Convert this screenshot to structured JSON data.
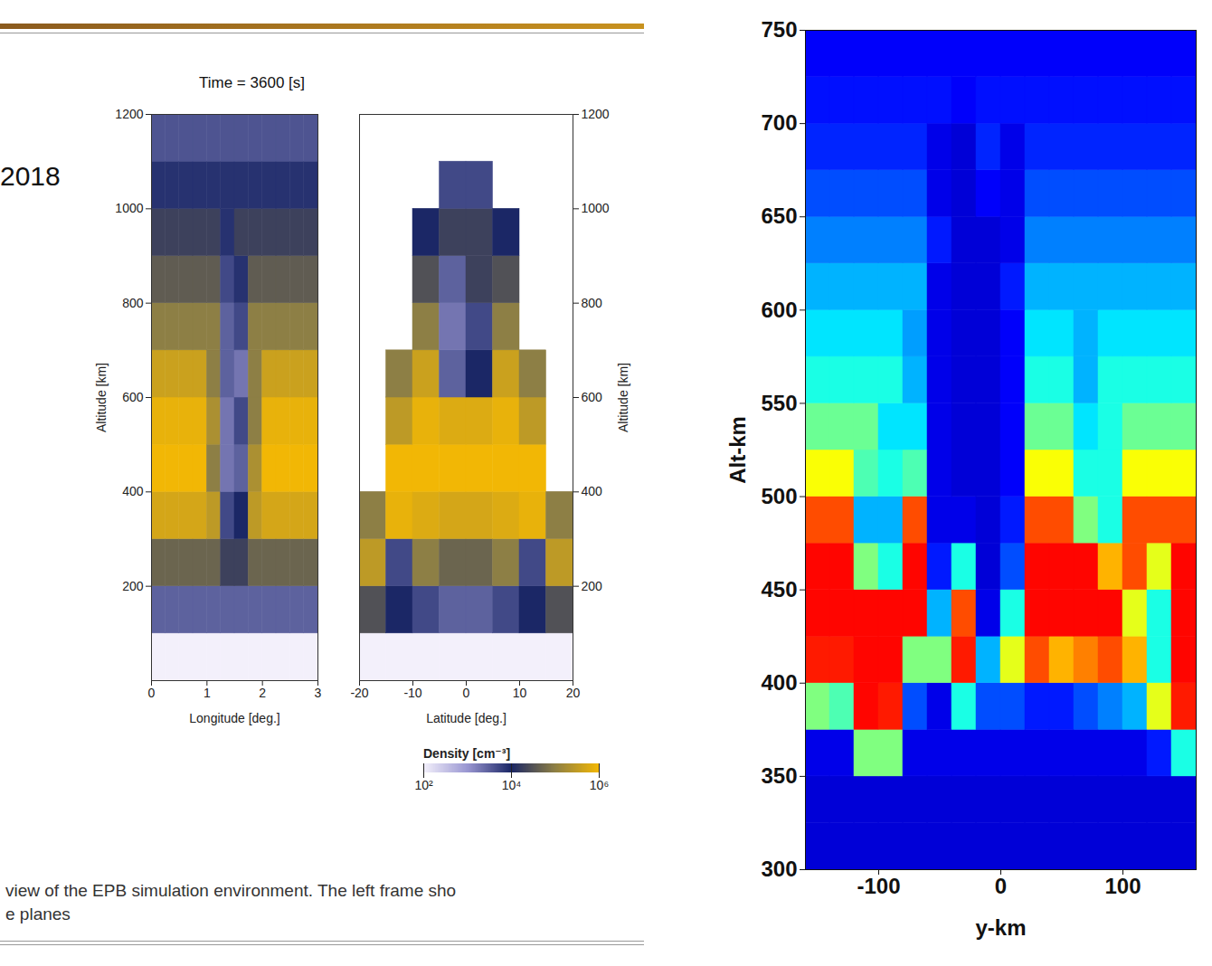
{
  "slide": {
    "text": "2018",
    "caption": [
      "view of the EPB simulation environment. The left frame sho",
      "e planes"
    ]
  },
  "chart_data": [
    {
      "type": "heatmap",
      "title": "Time = 3600 [s]",
      "x_label": "Longitude [deg.]",
      "y_label": "Altitude [km]",
      "xlim": [
        0,
        3
      ],
      "ylim": [
        0,
        1200
      ],
      "xticks": [
        0,
        1,
        2,
        3
      ],
      "yticks": [
        200,
        400,
        600,
        800,
        1000,
        1200
      ],
      "x_edges": [
        0,
        0.25,
        0.5,
        0.75,
        1,
        1.25,
        1.5,
        1.75,
        2,
        2.25,
        2.5,
        2.75,
        3
      ],
      "y_edges": [
        0,
        100,
        200,
        300,
        400,
        500,
        600,
        700,
        800,
        900,
        1000,
        1100,
        1200
      ],
      "values": [
        [
          100,
          100,
          100,
          100,
          100,
          100,
          100,
          100,
          100,
          100,
          100,
          100
        ],
        [
          3000,
          3000,
          3000,
          3000,
          3000,
          3000,
          3000,
          3000,
          3000,
          3000,
          3000,
          3000
        ],
        [
          50000,
          50000,
          50000,
          50000,
          50000,
          20000,
          20000,
          50000,
          50000,
          50000,
          50000,
          50000
        ],
        [
          500000,
          500000,
          500000,
          500000,
          300000,
          5000,
          10000,
          300000,
          500000,
          500000,
          500000,
          500000
        ],
        [
          1000000,
          1000000,
          1000000,
          1000000,
          100000,
          2000,
          3000,
          200000,
          1000000,
          1000000,
          1000000,
          1000000
        ],
        [
          800000,
          800000,
          800000,
          800000,
          200000,
          2000,
          5000,
          100000,
          800000,
          800000,
          800000,
          800000
        ],
        [
          400000,
          400000,
          400000,
          400000,
          100000,
          3000,
          2000,
          100000,
          400000,
          400000,
          400000,
          400000
        ],
        [
          100000,
          100000,
          100000,
          100000,
          100000,
          3000,
          5000,
          100000,
          100000,
          100000,
          100000,
          100000
        ],
        [
          40000,
          40000,
          40000,
          40000,
          40000,
          5000,
          8000,
          40000,
          40000,
          40000,
          40000,
          40000
        ],
        [
          20000,
          20000,
          20000,
          20000,
          20000,
          8000,
          20000,
          20000,
          20000,
          20000,
          20000,
          20000
        ],
        [
          8000,
          8000,
          8000,
          8000,
          8000,
          8000,
          8000,
          8000,
          8000,
          8000,
          8000,
          8000
        ],
        [
          4000,
          4000,
          4000,
          4000,
          4000,
          4000,
          4000,
          4000,
          4000,
          4000,
          4000,
          4000
        ]
      ]
    },
    {
      "type": "heatmap",
      "x_label": "Latitude [deg.]",
      "y_label": "Altitude [km]",
      "xlim": [
        -20,
        20
      ],
      "ylim": [
        0,
        1200
      ],
      "xticks": [
        -20,
        -10,
        0,
        10,
        20
      ],
      "yticks": [
        200,
        400,
        600,
        800,
        1000,
        1200
      ],
      "x_edges": [
        -20,
        -15,
        -10,
        -5,
        0,
        5,
        10,
        15,
        20
      ],
      "y_edges": [
        0,
        100,
        200,
        300,
        400,
        500,
        600,
        700,
        800,
        900,
        1000,
        1100,
        1200
      ],
      "values": [
        [
          100,
          100,
          100,
          100,
          100,
          100,
          100,
          100
        ],
        [
          30000,
          10000,
          5000,
          3000,
          3000,
          5000,
          10000,
          30000
        ],
        [
          300000,
          5000,
          100000,
          50000,
          50000,
          100000,
          5000,
          300000
        ],
        [
          100000,
          800000,
          600000,
          500000,
          500000,
          600000,
          800000,
          100000
        ],
        [
          null,
          1000000,
          1000000,
          1000000,
          1000000,
          1000000,
          1000000,
          null
        ],
        [
          null,
          300000,
          800000,
          600000,
          600000,
          800000,
          300000,
          null
        ],
        [
          null,
          100000,
          400000,
          3000,
          10000,
          400000,
          100000,
          null
        ],
        [
          null,
          null,
          100000,
          2000,
          5000,
          100000,
          null,
          null
        ],
        [
          null,
          null,
          30000,
          3000,
          20000,
          30000,
          null,
          null
        ],
        [
          null,
          null,
          10000,
          20000,
          20000,
          10000,
          null,
          null
        ],
        [
          null,
          null,
          null,
          5000,
          5000,
          null,
          null,
          null
        ],
        [
          null,
          null,
          null,
          null,
          null,
          null,
          null,
          null
        ]
      ],
      "colorbar": {
        "label": "Density [cm⁻³]",
        "log": true,
        "range": [
          100,
          1000000
        ],
        "ticks": [
          {
            "value": 100,
            "label": "10²"
          },
          {
            "value": 10000,
            "label": "10⁴"
          },
          {
            "value": 1000000,
            "label": "10⁶"
          }
        ]
      }
    },
    {
      "type": "heatmap",
      "x_label": "y-km",
      "y_label": "Alt-km",
      "xlim": [
        -160,
        160
      ],
      "ylim": [
        300,
        750
      ],
      "xticks": [
        -100,
        0,
        100
      ],
      "yticks": [
        300,
        350,
        400,
        450,
        500,
        550,
        600,
        650,
        700,
        750
      ],
      "zlim": [
        0,
        1
      ],
      "x_edges": [
        -160,
        -140,
        -120,
        -100,
        -80,
        -60,
        -40,
        -20,
        0,
        20,
        40,
        60,
        80,
        100,
        120,
        140,
        160
      ],
      "y_edges": [
        300,
        325,
        350,
        375,
        400,
        425,
        450,
        475,
        500,
        525,
        550,
        575,
        600,
        625,
        650,
        675,
        700,
        725,
        750
      ],
      "values": [
        [
          0.08,
          0.08,
          0.08,
          0.08,
          0.08,
          0.08,
          0.08,
          0.08,
          0.08,
          0.08,
          0.08,
          0.08,
          0.08,
          0.08,
          0.08,
          0.08
        ],
        [
          0.08,
          0.08,
          0.08,
          0.08,
          0.08,
          0.08,
          0.08,
          0.08,
          0.08,
          0.08,
          0.08,
          0.08,
          0.08,
          0.08,
          0.08,
          0.08
        ],
        [
          0.1,
          0.1,
          0.5,
          0.5,
          0.1,
          0.1,
          0.1,
          0.1,
          0.1,
          0.1,
          0.1,
          0.1,
          0.1,
          0.1,
          0.15,
          0.4
        ],
        [
          0.5,
          0.45,
          0.87,
          0.85,
          0.2,
          0.1,
          0.4,
          0.2,
          0.2,
          0.15,
          0.15,
          0.2,
          0.25,
          0.3,
          0.6,
          0.85
        ],
        [
          0.85,
          0.85,
          0.87,
          0.87,
          0.5,
          0.5,
          0.85,
          0.3,
          0.6,
          0.8,
          0.7,
          0.75,
          0.8,
          0.7,
          0.4,
          0.87
        ],
        [
          0.87,
          0.87,
          0.87,
          0.87,
          0.87,
          0.3,
          0.8,
          0.1,
          0.4,
          0.87,
          0.87,
          0.87,
          0.87,
          0.6,
          0.4,
          0.87
        ],
        [
          0.87,
          0.87,
          0.5,
          0.4,
          0.87,
          0.15,
          0.4,
          0.08,
          0.2,
          0.87,
          0.87,
          0.87,
          0.7,
          0.8,
          0.6,
          0.87
        ],
        [
          0.8,
          0.8,
          0.3,
          0.3,
          0.8,
          0.1,
          0.1,
          0.08,
          0.15,
          0.8,
          0.8,
          0.5,
          0.4,
          0.8,
          0.8,
          0.8
        ],
        [
          0.62,
          0.62,
          0.45,
          0.4,
          0.45,
          0.1,
          0.08,
          0.08,
          0.12,
          0.62,
          0.62,
          0.4,
          0.4,
          0.62,
          0.62,
          0.62
        ],
        [
          0.48,
          0.48,
          0.48,
          0.35,
          0.35,
          0.1,
          0.08,
          0.08,
          0.12,
          0.48,
          0.48,
          0.35,
          0.4,
          0.48,
          0.48,
          0.48
        ],
        [
          0.4,
          0.4,
          0.4,
          0.4,
          0.3,
          0.1,
          0.08,
          0.08,
          0.12,
          0.4,
          0.4,
          0.3,
          0.4,
          0.4,
          0.4,
          0.4
        ],
        [
          0.35,
          0.35,
          0.35,
          0.35,
          0.28,
          0.1,
          0.08,
          0.08,
          0.12,
          0.35,
          0.35,
          0.3,
          0.35,
          0.35,
          0.35,
          0.35
        ],
        [
          0.3,
          0.3,
          0.3,
          0.3,
          0.3,
          0.1,
          0.08,
          0.08,
          0.15,
          0.3,
          0.3,
          0.3,
          0.3,
          0.3,
          0.3,
          0.3
        ],
        [
          0.25,
          0.25,
          0.25,
          0.25,
          0.25,
          0.15,
          0.08,
          0.08,
          0.1,
          0.25,
          0.25,
          0.25,
          0.25,
          0.25,
          0.25,
          0.25
        ],
        [
          0.2,
          0.2,
          0.2,
          0.2,
          0.2,
          0.1,
          0.08,
          0.12,
          0.1,
          0.2,
          0.2,
          0.2,
          0.2,
          0.2,
          0.2,
          0.2
        ],
        [
          0.16,
          0.16,
          0.16,
          0.16,
          0.16,
          0.1,
          0.08,
          0.16,
          0.1,
          0.16,
          0.16,
          0.16,
          0.16,
          0.16,
          0.16,
          0.16
        ],
        [
          0.14,
          0.14,
          0.14,
          0.14,
          0.14,
          0.14,
          0.12,
          0.14,
          0.14,
          0.14,
          0.14,
          0.14,
          0.14,
          0.14,
          0.14,
          0.14
        ],
        [
          0.12,
          0.12,
          0.12,
          0.12,
          0.12,
          0.12,
          0.12,
          0.12,
          0.12,
          0.12,
          0.12,
          0.12,
          0.12,
          0.12,
          0.12,
          0.12
        ]
      ]
    }
  ]
}
